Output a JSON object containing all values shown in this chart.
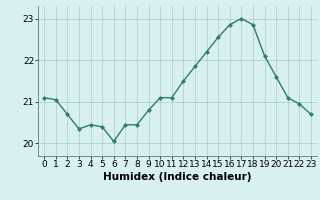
{
  "x": [
    0,
    1,
    2,
    3,
    4,
    5,
    6,
    7,
    8,
    9,
    10,
    11,
    12,
    13,
    14,
    15,
    16,
    17,
    18,
    19,
    20,
    21,
    22,
    23
  ],
  "y": [
    21.1,
    21.05,
    20.7,
    20.35,
    20.45,
    20.4,
    20.05,
    20.45,
    20.45,
    20.8,
    21.1,
    21.1,
    21.5,
    21.85,
    22.2,
    22.55,
    22.85,
    23.0,
    22.85,
    22.1,
    21.6,
    21.1,
    20.95,
    20.7
  ],
  "line_color": "#2e7d6e",
  "marker": "D",
  "marker_size": 2.0,
  "line_width": 1.0,
  "bg_color": "#d8f0f0",
  "grid_color": "#aacccc",
  "xlabel": "Humidex (Indice chaleur)",
  "xlabel_fontsize": 7.5,
  "tick_fontsize": 6.5,
  "ylim": [
    19.7,
    23.3
  ],
  "yticks": [
    20,
    21,
    22,
    23
  ],
  "xticks": [
    0,
    1,
    2,
    3,
    4,
    5,
    6,
    7,
    8,
    9,
    10,
    11,
    12,
    13,
    14,
    15,
    16,
    17,
    18,
    19,
    20,
    21,
    22,
    23
  ]
}
